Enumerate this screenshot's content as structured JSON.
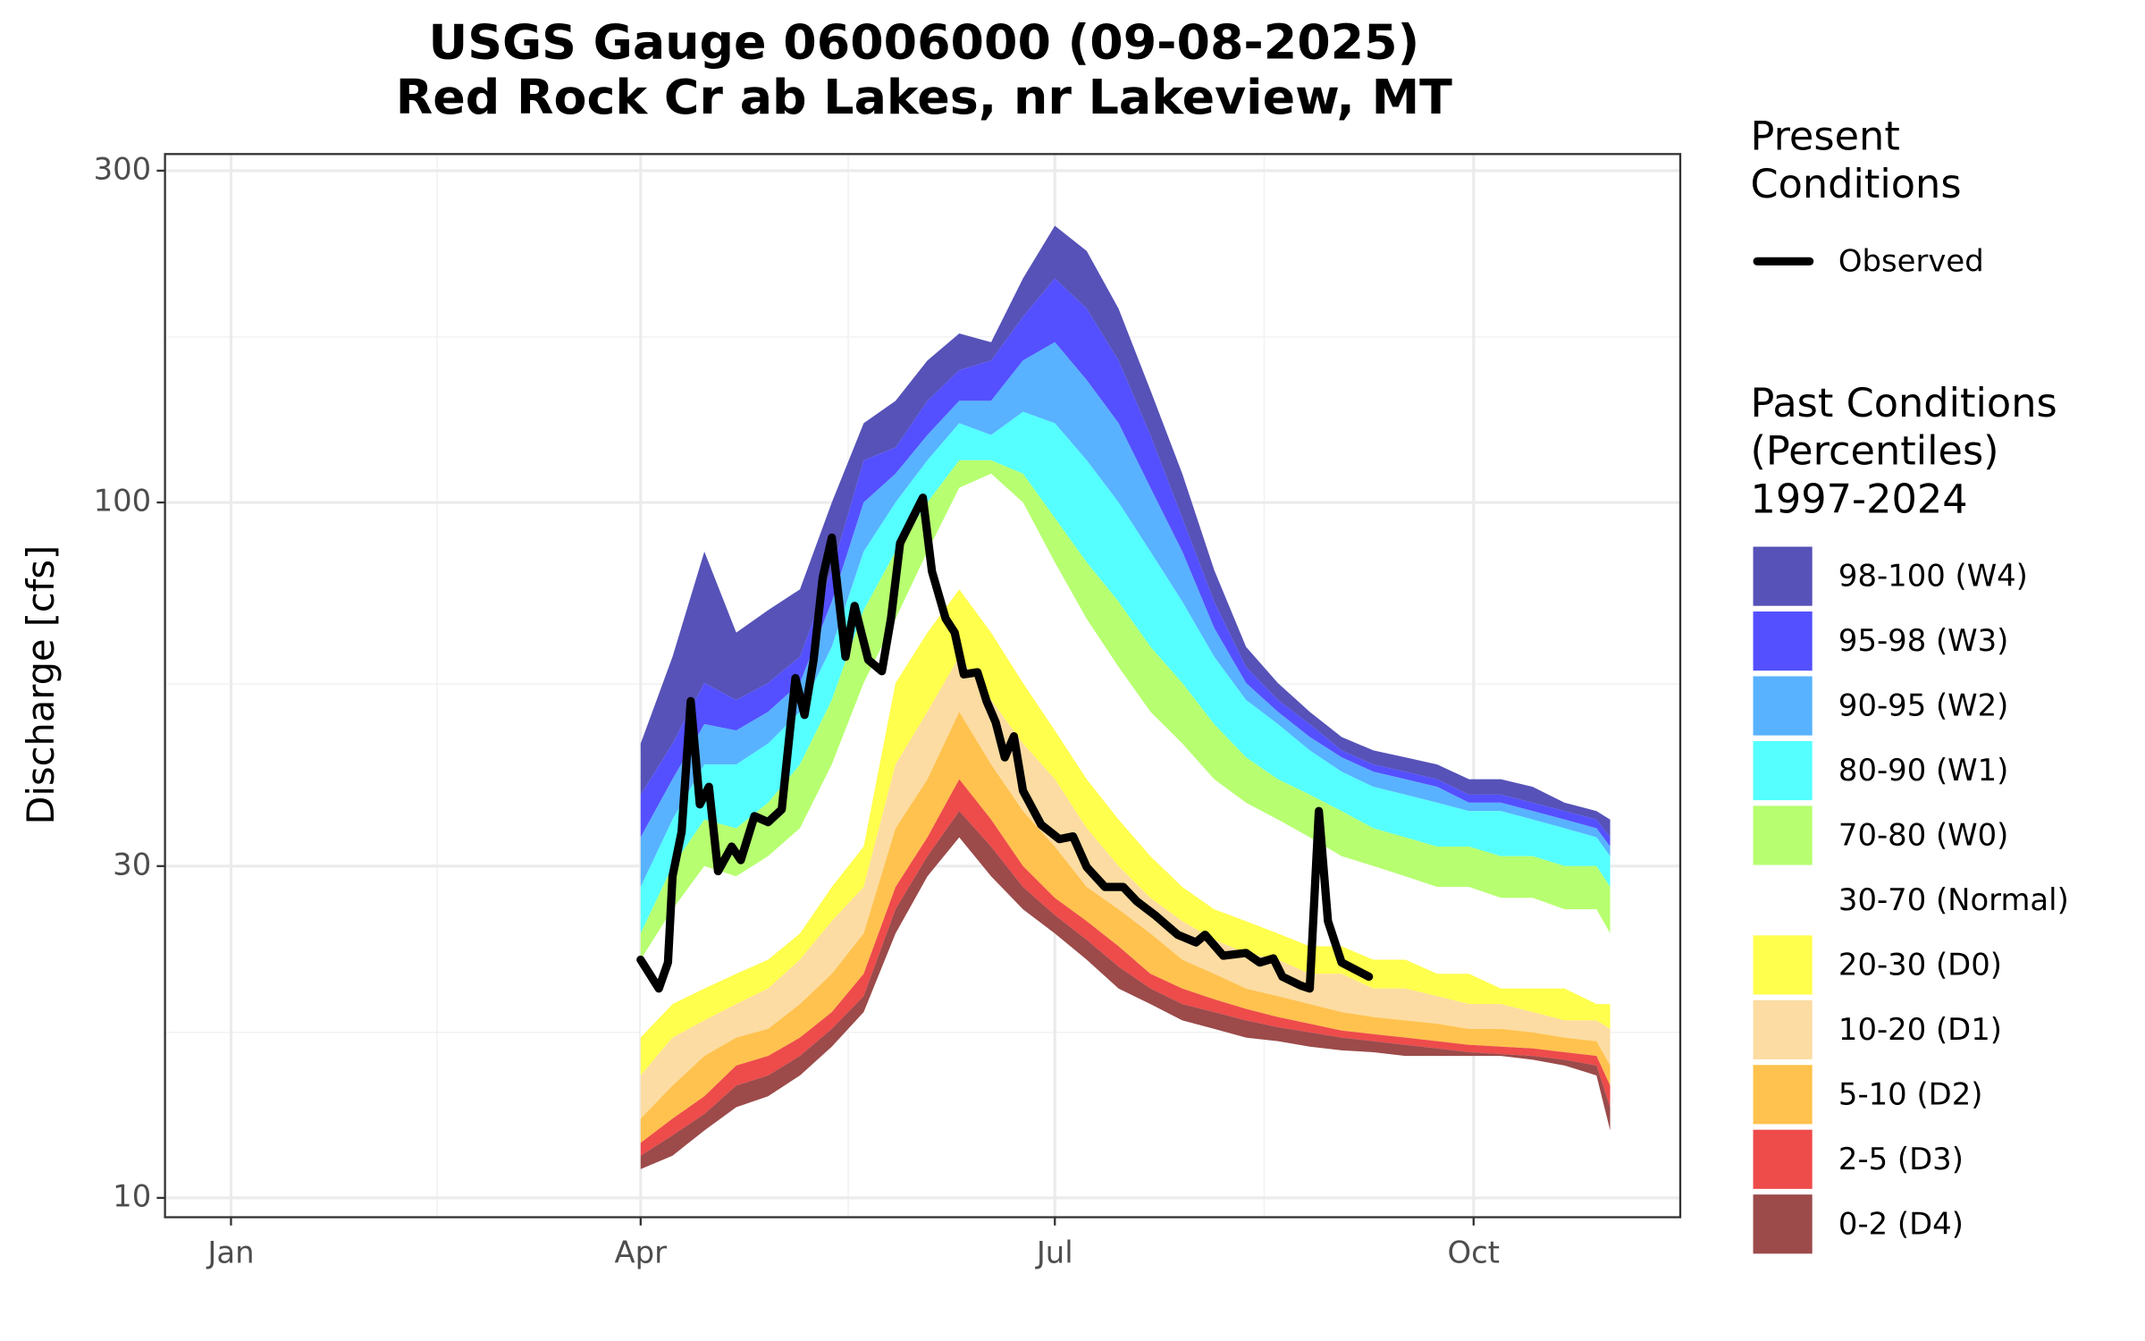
{
  "chart_data": {
    "type": "percentile_area",
    "title": "USGS Gauge 06006000 (09-08-2025)",
    "subtitle": "Red Rock Cr ab Lakes, nr Lakeview, MT",
    "y_label": "Discharge [cfs]",
    "log_y": true,
    "grid": true,
    "ylim": [
      9.38,
      317
    ],
    "yticks": [
      10,
      30,
      100,
      300
    ],
    "yminor": [
      17.3,
      54.8,
      173
    ],
    "xlim": [
      -14.5,
      318.4
    ],
    "xticks": [
      {
        "value": 0,
        "label": "Jan"
      },
      {
        "value": 90,
        "label": "Apr"
      },
      {
        "value": 181,
        "label": "Jul"
      },
      {
        "value": 273,
        "label": "Oct"
      }
    ],
    "xminor": [
      45.3,
      135.6,
      227
    ],
    "legend_present_title": [
      "Present",
      "Conditions"
    ],
    "legend_past_title": [
      "Past Conditions",
      "(Percentiles)",
      "1997-2024"
    ],
    "x": [
      90,
      97,
      104,
      111,
      118,
      125,
      132,
      139,
      146,
      153,
      160,
      167,
      174,
      181,
      188,
      195,
      202,
      209,
      216,
      223,
      230,
      237,
      244,
      251,
      258,
      265,
      272,
      279,
      286,
      293,
      300,
      303
    ],
    "curves": [
      [
        11,
        11.5,
        12.5,
        13.5,
        14,
        15,
        16.5,
        18.5,
        24,
        29,
        33,
        29,
        26,
        24,
        22,
        20,
        19,
        18,
        17.5,
        17,
        16.8,
        16.5,
        16.3,
        16.2,
        16,
        16,
        16,
        16,
        15.8,
        15.5,
        15,
        12.5
      ],
      [
        11.5,
        12.3,
        13.2,
        14.5,
        15,
        16,
        17.5,
        19.5,
        26,
        31,
        36,
        32,
        28,
        25.5,
        23.5,
        21.5,
        20,
        19,
        18.5,
        18,
        17.6,
        17.3,
        17,
        16.8,
        16.6,
        16.4,
        16.2,
        16.1,
        16,
        15.8,
        15.5,
        13.5
      ],
      [
        12,
        13,
        14,
        15.5,
        16,
        17,
        18.5,
        21,
        28,
        33,
        40,
        35,
        30,
        27,
        25,
        23,
        21,
        20,
        19.3,
        18.7,
        18.2,
        17.8,
        17.4,
        17.2,
        17,
        16.8,
        16.6,
        16.5,
        16.4,
        16.2,
        16,
        14.5
      ],
      [
        13,
        14.5,
        16,
        17,
        17.5,
        19,
        21,
        24,
        34,
        40,
        50,
        42,
        36,
        32,
        28,
        26,
        24,
        22,
        21,
        20,
        19.5,
        19,
        18.5,
        18.2,
        18,
        17.8,
        17.5,
        17.5,
        17.3,
        17,
        16.8,
        15.5
      ],
      [
        15,
        17,
        18,
        19,
        20,
        22,
        25,
        28,
        42,
        50,
        60,
        52,
        45,
        40,
        34,
        30,
        27,
        25,
        23.5,
        22.5,
        22,
        21,
        21,
        20,
        20,
        19.5,
        19,
        19,
        18.5,
        18,
        18,
        17.5
      ],
      [
        17,
        19,
        20,
        21,
        22,
        24,
        28,
        32,
        55,
        65,
        75,
        65,
        55,
        47,
        40,
        35,
        31,
        28,
        26,
        25,
        24,
        23,
        23,
        22,
        22,
        21,
        21,
        20,
        20,
        20,
        19,
        19
      ],
      [
        22,
        26,
        30,
        29,
        31,
        34,
        42,
        55,
        68,
        85,
        105,
        110,
        100,
        82,
        68,
        58,
        50,
        45,
        40,
        37,
        35,
        33,
        31,
        30,
        29,
        28,
        28,
        27,
        27,
        26,
        26,
        24
      ],
      [
        24,
        30,
        35,
        34,
        37,
        42,
        52,
        70,
        85,
        100,
        115,
        115,
        110,
        95,
        82,
        72,
        62,
        55,
        48,
        43,
        40,
        38,
        36,
        34,
        33,
        32,
        32,
        31,
        31,
        30,
        30,
        28
      ],
      [
        28,
        35,
        42,
        42,
        45,
        50,
        62,
        85,
        100,
        115,
        130,
        125,
        135,
        130,
        115,
        100,
        85,
        72,
        60,
        52,
        48,
        44,
        41,
        39,
        38,
        37,
        36,
        36,
        35,
        34,
        33,
        31
      ],
      [
        33,
        40,
        48,
        47,
        50,
        55,
        72,
        100,
        110,
        125,
        140,
        140,
        160,
        170,
        150,
        130,
        105,
        85,
        66,
        55,
        50,
        46,
        43,
        41,
        40,
        39,
        37,
        37,
        36,
        35,
        34,
        32
      ],
      [
        38,
        45,
        55,
        52,
        55,
        60,
        80,
        115,
        120,
        140,
        155,
        160,
        185,
        210,
        190,
        160,
        125,
        95,
        72,
        58,
        52,
        48,
        44,
        42,
        41,
        40,
        38,
        38,
        37,
        36,
        35,
        33
      ],
      [
        45,
        60,
        85,
        65,
        70,
        75,
        100,
        130,
        140,
        160,
        175,
        170,
        210,
        250,
        230,
        190,
        145,
        110,
        80,
        62,
        55,
        50,
        46,
        44,
        43,
        42,
        40,
        40,
        39,
        37,
        36,
        35
      ]
    ],
    "bands": [
      {
        "name": "98-100 (W4)",
        "color": "#5652b8"
      },
      {
        "name": "95-98 (W3)",
        "color": "#5450ff"
      },
      {
        "name": "90-95 (W2)",
        "color": "#58b2ff"
      },
      {
        "name": "80-90 (W1)",
        "color": "#55ffff"
      },
      {
        "name": "70-80 (W0)",
        "color": "#b7ff70"
      },
      {
        "name": "30-70 (Normal)",
        "color": "#ffffff"
      },
      {
        "name": "20-30 (D0)",
        "color": "#ffff4d"
      },
      {
        "name": "10-20 (D1)",
        "color": "#fcdca2"
      },
      {
        "name": "5-10 (D2)",
        "color": "#ffc24e"
      },
      {
        "name": "2-5 (D3)",
        "color": "#ee4b4b"
      },
      {
        "name": "0-2 (D4)",
        "color": "#9c4a4a"
      }
    ],
    "observed": {
      "name": "Observed",
      "color": "#000000",
      "x": [
        90,
        94,
        96,
        97,
        99,
        101,
        103,
        105,
        107,
        110,
        112,
        115,
        118,
        121,
        124,
        126,
        128,
        130,
        132,
        133,
        135,
        137,
        140,
        143,
        145,
        147,
        150,
        152,
        154,
        157,
        159,
        161,
        164,
        166,
        168,
        170,
        172,
        174,
        178,
        182,
        185,
        188,
        192,
        196,
        199,
        203,
        208,
        212,
        214,
        218,
        223,
        226,
        229,
        231,
        235,
        237,
        239,
        241,
        244,
        250
      ],
      "values": [
        22,
        20,
        21.8,
        29,
        33.6,
        51.8,
        36.8,
        39,
        29.5,
        32,
        30.6,
        35.4,
        34.7,
        36.2,
        55.9,
        49.5,
        59.4,
        78,
        89,
        78,
        60,
        71,
        59.4,
        57.2,
        68.1,
        87.4,
        95.7,
        101.6,
        79.6,
        68.1,
        65,
        56.6,
        57,
        51.8,
        48.3,
        43,
        46.1,
        38.5,
        34.4,
        32.8,
        33.1,
        29.9,
        28,
        28,
        26.7,
        25.5,
        23.9,
        23.3,
        23.9,
        22.3,
        22.5,
        21.8,
        22.1,
        20.8,
        20.2,
        20,
        36,
        25,
        21.8,
        20.8
      ]
    }
  }
}
